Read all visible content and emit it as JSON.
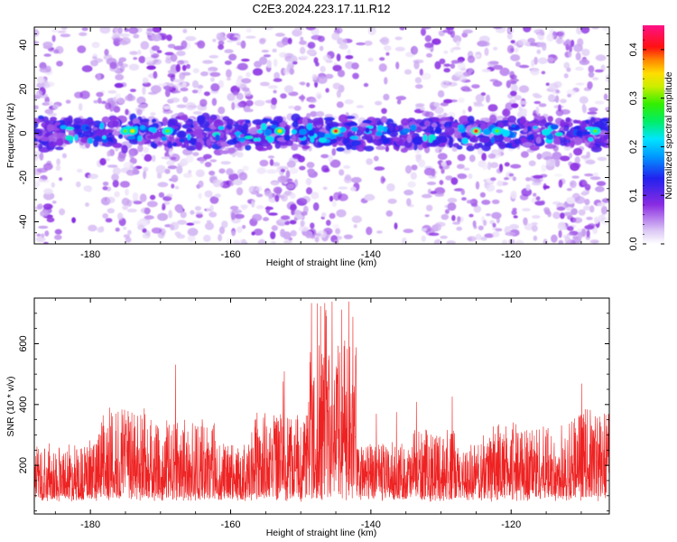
{
  "title": "C2E3.2024.223.17.11.R12",
  "colors": {
    "snr_line": "#ee2222",
    "frame": "#000000",
    "background": "#ffffff"
  },
  "chart_data": [
    {
      "type": "heatmap",
      "xlabel": "Height of straight line (km)",
      "ylabel": "Frequency (Hz)",
      "xlim": [
        -188,
        -106
      ],
      "ylim": [
        -50,
        48
      ],
      "x_ticks": [
        "-180",
        "-160",
        "-140",
        "-120"
      ],
      "x_tick_values": [
        -180,
        -160,
        -140,
        -120
      ],
      "y_ticks": [
        "-40",
        "-20",
        "0",
        "20",
        "40"
      ],
      "y_tick_values": [
        -40,
        -20,
        0,
        20,
        40
      ],
      "colorbar": {
        "label": "Normalized spectral amplitude",
        "range": [
          0,
          0.45
        ],
        "ticks": [
          "0.0",
          "0.1",
          "0.2",
          "0.3",
          "0.4"
        ],
        "tick_values": [
          0,
          0.1,
          0.2,
          0.3,
          0.4
        ],
        "colormap": "white-purple-blue-cyan-green-yellow-red-magenta"
      },
      "features": {
        "band_center_hz": 0,
        "peak_heights_km": [
          -175,
          -174,
          -169,
          -153,
          -145,
          -125,
          -122,
          -108
        ],
        "peak_amplitudes": [
          0.3,
          0.35,
          0.3,
          0.35,
          0.42,
          0.42,
          0.3,
          0.3
        ]
      }
    },
    {
      "type": "line",
      "xlabel": "Height of straight line (km)",
      "ylabel": "SNR (10 * v/v)",
      "xlim": [
        -188,
        -106
      ],
      "ylim": [
        40,
        750
      ],
      "x_ticks": [
        "-180",
        "-160",
        "-140",
        "-120"
      ],
      "x_tick_values": [
        -180,
        -160,
        -140,
        -120
      ],
      "y_ticks": [
        "200",
        "400",
        "600"
      ],
      "y_tick_values": [
        200,
        400,
        600
      ],
      "series": [
        {
          "color": "#ee2222",
          "baseline": 120,
          "max_peak": 740,
          "peak_region_km": [
            -147,
            -143
          ]
        }
      ]
    }
  ]
}
